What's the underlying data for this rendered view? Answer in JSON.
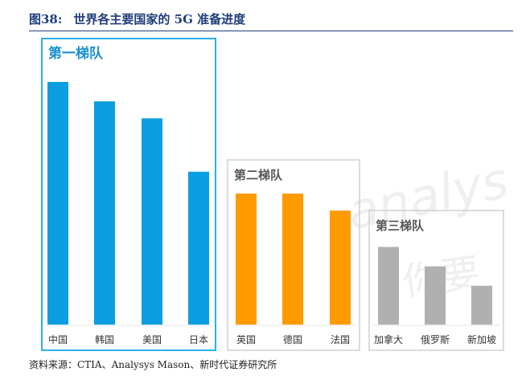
{
  "figure": {
    "number": "图38:",
    "title": "世界各主要国家的 5G 准备进度"
  },
  "source": "资料来源：CTIA、Analysys Mason、新时代证券研究所",
  "watermark": {
    "logo_text": "analys",
    "seal_text": "你要"
  },
  "colors": {
    "tier1_bar": "#0a9ee0",
    "tier1_border": "#2ab0e8",
    "tier1_label": "#1a8fd0",
    "tier2_bar": "#ff9a00",
    "tier3_bar": "#b0b0b0",
    "group_border": "#cfcfcf",
    "group_label": "#555555",
    "title": "#1f3d7a"
  },
  "chart_data": {
    "type": "bar",
    "groups": [
      {
        "label": "第一梯队",
        "categories": [
          "中国",
          "韩国",
          "美国",
          "日本"
        ],
        "values": [
          100,
          92,
          85,
          63
        ],
        "color_key": "tier1_bar"
      },
      {
        "label": "第二梯队",
        "categories": [
          "英国",
          "德国",
          "法国"
        ],
        "values": [
          54,
          54,
          47
        ],
        "color_key": "tier2_bar"
      },
      {
        "label": "第三梯队",
        "categories": [
          "加拿大",
          "俄罗斯",
          "新加坡"
        ],
        "values": [
          32,
          24,
          16
        ],
        "color_key": "tier3_bar"
      }
    ],
    "title": "",
    "xlabel": "",
    "ylabel": "",
    "ylim": [
      0,
      100
    ],
    "grid": false,
    "legend": "none"
  }
}
